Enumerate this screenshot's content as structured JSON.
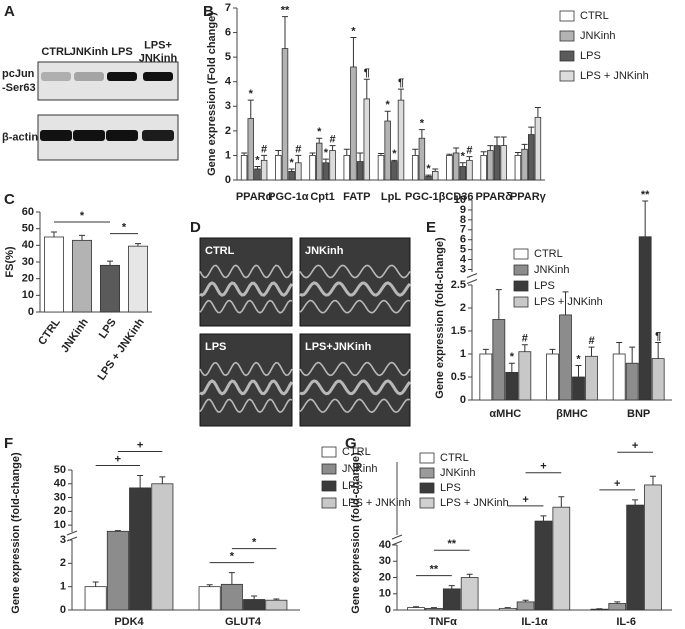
{
  "chart_data": [
    {
      "panel": "B",
      "type": "bar",
      "ylabel": "Gene expression (Fold change)",
      "categories": [
        "PPARα",
        "PGC-1α",
        "Cpt1",
        "FATP",
        "LpL",
        "PGC-1β",
        "CD36",
        "PPARδ",
        "PPARγ"
      ],
      "ylim": [
        0,
        7
      ],
      "yticks": [
        0,
        1,
        2,
        3,
        4,
        5,
        6,
        7
      ],
      "series": [
        {
          "name": "CTRL",
          "color": "#ffffff",
          "values": [
            1,
            1,
            1,
            1,
            1,
            1,
            1,
            1,
            1
          ],
          "errors": [
            0.1,
            0.2,
            0.1,
            0.25,
            0.08,
            0.25,
            0.05,
            0.15,
            0.12
          ],
          "markers": [
            null,
            null,
            null,
            null,
            null,
            null,
            null,
            null,
            null
          ]
        },
        {
          "name": "JNKinh",
          "color": "#b3b3b3",
          "values": [
            2.5,
            5.35,
            1.5,
            4.6,
            2.4,
            1.7,
            1.1,
            1.2,
            1.25
          ],
          "errors": [
            0.75,
            1.3,
            0.2,
            1.2,
            0.4,
            0.35,
            0.2,
            0.2,
            0.2
          ],
          "markers": [
            "*",
            "**",
            "*",
            "*",
            "*",
            "*",
            null,
            null,
            null
          ]
        },
        {
          "name": "LPS",
          "color": "#5a5a5a",
          "values": [
            0.45,
            0.35,
            0.7,
            0.75,
            0.75,
            0.15,
            0.55,
            1.4,
            1.85
          ],
          "errors": [
            0.1,
            0.1,
            0.15,
            0.35,
            0.05,
            0.05,
            0.15,
            0.35,
            0.3
          ],
          "markers": [
            "*",
            "*",
            "*",
            null,
            "*",
            "*",
            "*",
            null,
            null
          ]
        },
        {
          "name": "LPS + JNKinh",
          "color": "#dcdcdc",
          "values": [
            0.8,
            0.7,
            1.2,
            3.3,
            3.25,
            0.35,
            0.8,
            1.4,
            2.55
          ],
          "errors": [
            0.2,
            0.3,
            0.2,
            0.8,
            0.45,
            0.1,
            0.15,
            0.35,
            0.4
          ],
          "markers": [
            "#",
            "#",
            "#",
            "¶",
            "¶",
            null,
            "#",
            null,
            null
          ]
        }
      ]
    },
    {
      "panel": "C",
      "type": "bar",
      "ylabel": "FS(%)",
      "categories": [
        "CTRL",
        "JNKinh",
        "LPS",
        "LPS + JNKinh"
      ],
      "values": [
        45,
        43,
        28,
        39.5
      ],
      "errors": [
        3,
        3,
        2.5,
        1.5
      ],
      "colors": [
        "#ffffff",
        "#b3b3b3",
        "#5a5a5a",
        "#e6e6e6"
      ],
      "ylim": [
        0,
        60
      ],
      "yticks": [
        0,
        10,
        20,
        30,
        40,
        50,
        60
      ],
      "brackets": [
        {
          "from": 0,
          "to": 2,
          "label": "*"
        },
        {
          "from": 2,
          "to": 3,
          "label": "*"
        }
      ]
    },
    {
      "panel": "E",
      "type": "bar",
      "ylabel": "Gene expression (fold-change)",
      "categories": [
        "αMHC",
        "βMHC",
        "BNP"
      ],
      "segments": [
        {
          "ylim": [
            0,
            2.5
          ],
          "yticks": [
            0,
            0.5,
            1,
            1.5,
            2,
            2.5
          ]
        },
        {
          "ylim": [
            2.75,
            10
          ],
          "yticks": [
            3,
            4,
            5,
            6,
            7,
            8,
            9,
            10
          ]
        }
      ],
      "series": [
        {
          "name": "CTRL",
          "color": "#ffffff",
          "values": [
            1,
            1,
            1
          ],
          "errors": [
            0.1,
            0.1,
            0.25
          ],
          "markers": [
            null,
            null,
            null
          ]
        },
        {
          "name": "JNKinh",
          "color": "#8c8c8c",
          "values": [
            1.75,
            1.85,
            0.8
          ],
          "errors": [
            0.65,
            0.5,
            0.35
          ],
          "markers": [
            null,
            null,
            null
          ]
        },
        {
          "name": "LPS",
          "color": "#3a3a3a",
          "values": [
            0.6,
            0.5,
            6.3
          ],
          "errors": [
            0.2,
            0.25,
            3.6
          ],
          "markers": [
            "*",
            "*",
            "**"
          ]
        },
        {
          "name": "LPS + JNKinh",
          "color": "#c8c8c8",
          "values": [
            1.05,
            0.95,
            0.9
          ],
          "errors": [
            0.15,
            0.2,
            0.35
          ],
          "markers": [
            "#",
            "#",
            "¶"
          ]
        }
      ]
    },
    {
      "panel": "F",
      "type": "bar",
      "ylabel": "Gene expression (fold-change)",
      "categories": [
        "PDK4",
        "GLUT4"
      ],
      "segments": [
        {
          "ylim": [
            0,
            3
          ],
          "yticks": [
            0,
            1,
            2,
            3
          ]
        },
        {
          "ylim": [
            5,
            50
          ],
          "yticks": [
            10,
            20,
            30,
            40,
            50
          ]
        }
      ],
      "series": [
        {
          "name": "CTRL",
          "color": "#ffffff",
          "values": [
            1,
            1
          ],
          "errors": [
            0.2,
            0.08
          ]
        },
        {
          "name": "JNKinh",
          "color": "#8c8c8c",
          "values": [
            5.5,
            1.1
          ],
          "errors": [
            0.5,
            0.5
          ]
        },
        {
          "name": "LPS",
          "color": "#3a3a3a",
          "values": [
            37,
            0.45
          ],
          "errors": [
            9,
            0.15
          ]
        },
        {
          "name": "LPS + JNKinh",
          "color": "#c8c8c8",
          "values": [
            40,
            0.42
          ],
          "errors": [
            5,
            0.05
          ]
        }
      ],
      "brackets": [
        {
          "category": 0,
          "from": 0,
          "to": 2,
          "label": "+"
        },
        {
          "category": 0,
          "from": 1,
          "to": 3,
          "label": "+"
        },
        {
          "category": 1,
          "from": 0,
          "to": 2,
          "label": "*"
        },
        {
          "category": 1,
          "from": 1,
          "to": 3,
          "label": "*"
        }
      ]
    },
    {
      "panel": "G",
      "type": "bar",
      "ylabel": "Gene expression (fold-change)",
      "categories": [
        "TNFα",
        "IL-1α",
        "IL-6"
      ],
      "segments": [
        {
          "ylim": [
            0,
            40
          ],
          "yticks": [
            0,
            10,
            20,
            30,
            40
          ]
        },
        {
          "ylim": [
            40,
            250
          ],
          "yticks": []
        }
      ],
      "series": [
        {
          "name": "CTRL",
          "color": "#ffffff",
          "values": [
            1.5,
            1,
            0.5
          ],
          "errors": [
            0.5,
            0.5,
            0.3
          ]
        },
        {
          "name": "JNKinh",
          "color": "#9a9a9a",
          "values": [
            1,
            5,
            4
          ],
          "errors": [
            0.5,
            1,
            1
          ]
        },
        {
          "name": "LPS",
          "color": "#3c3c3c",
          "values": [
            13,
            80,
            126
          ],
          "errors": [
            2,
            15,
            15
          ]
        },
        {
          "name": "LPS + JNKinh",
          "color": "#cfcfcf",
          "values": [
            20,
            120,
            184
          ],
          "errors": [
            2,
            30,
            25
          ]
        }
      ],
      "brackets": [
        {
          "category": 0,
          "from": 0,
          "to": 2,
          "label": "**"
        },
        {
          "category": 0,
          "from": 1,
          "to": 3,
          "label": "**"
        },
        {
          "category": 1,
          "from": 0,
          "to": 2,
          "label": "+"
        },
        {
          "category": 1,
          "from": 1,
          "to": 3,
          "label": "+"
        },
        {
          "category": 2,
          "from": 0,
          "to": 2,
          "label": "+"
        },
        {
          "category": 2,
          "from": 1,
          "to": 3,
          "label": "+"
        }
      ]
    }
  ],
  "blot": {
    "panel": "A",
    "lanes": [
      [
        "CTRL"
      ],
      [
        "JNKinh"
      ],
      [
        "LPS"
      ],
      [
        "LPS+",
        "JNKinh"
      ]
    ],
    "rows": [
      [
        "pcJun",
        "-Ser63"
      ],
      [
        "β-actin"
      ]
    ]
  },
  "echo": {
    "panel": "D",
    "labels": [
      "CTRL",
      "JNKinh",
      "LPS",
      "LPS+JNKinh"
    ]
  }
}
